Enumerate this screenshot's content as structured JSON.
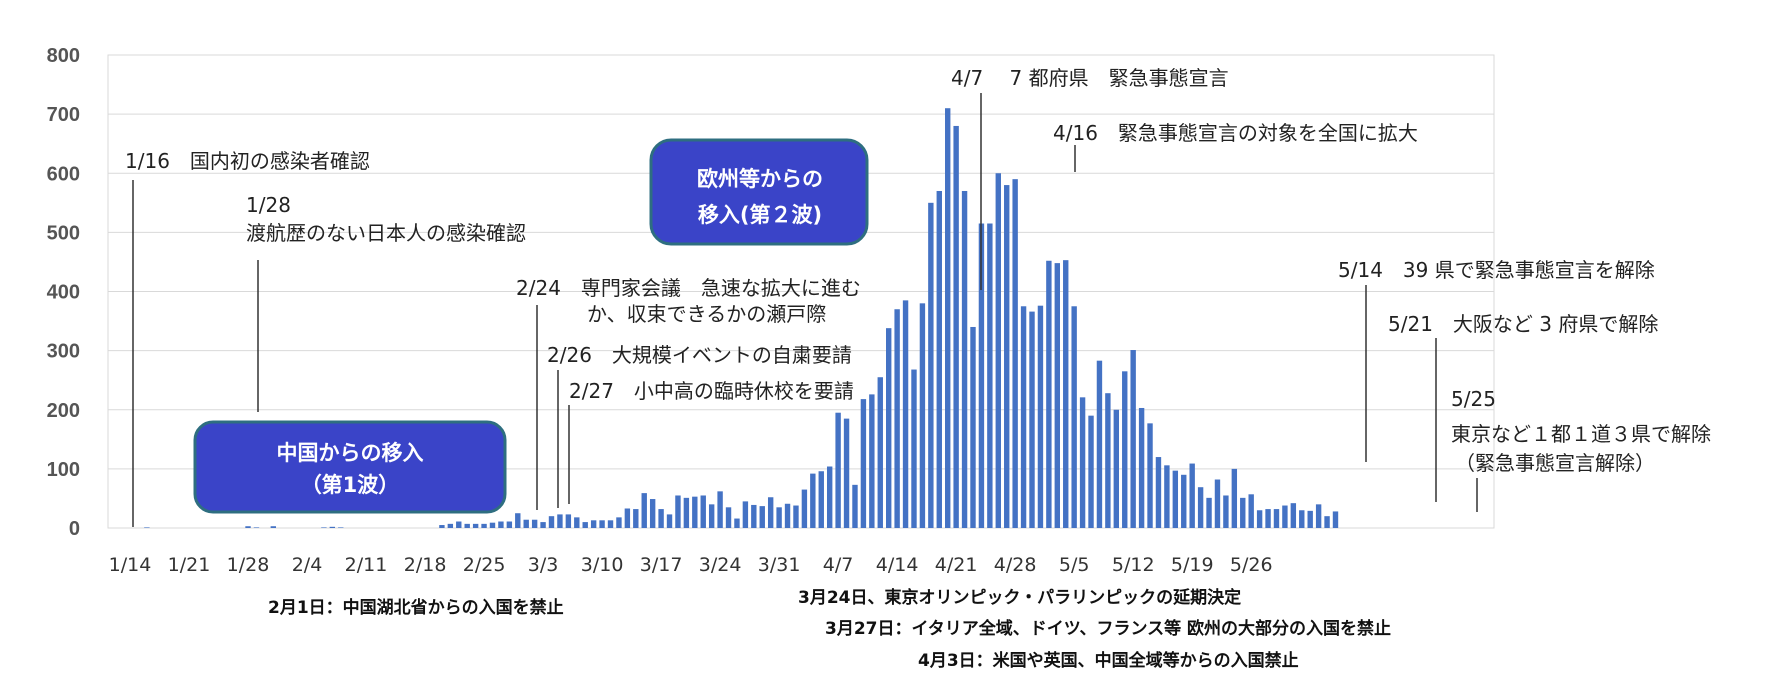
{
  "chart_data": {
    "type": "bar",
    "start_date": "1/14",
    "x_tick_labels": [
      "1/14",
      "1/21",
      "1/28",
      "2/4",
      "2/11",
      "2/18",
      "2/25",
      "3/3",
      "3/10",
      "3/17",
      "3/24",
      "3/31",
      "4/7",
      "4/14",
      "4/21",
      "4/28",
      "5/5",
      "5/12",
      "5/19",
      "5/26"
    ],
    "ylim": [
      0,
      800
    ],
    "y_ticks": [
      0,
      100,
      200,
      300,
      400,
      500,
      600,
      700,
      800
    ],
    "grid": true,
    "bar_color": "#4472C4",
    "values": [
      0,
      0,
      1,
      0,
      0,
      0,
      0,
      0,
      0,
      0,
      0,
      0,
      0,
      0,
      3,
      1,
      0,
      3,
      0,
      0,
      0,
      0,
      0,
      1,
      2,
      1,
      0,
      0,
      0,
      0,
      0,
      0,
      0,
      0,
      0,
      0,
      0,
      5,
      7,
      11,
      7,
      7,
      7,
      9,
      11,
      11,
      25,
      14,
      14,
      10,
      20,
      23,
      23,
      18,
      10,
      13,
      13,
      13,
      18,
      33,
      32,
      59,
      49,
      32,
      23,
      55,
      51,
      53,
      55,
      40,
      62,
      35,
      16,
      45,
      39,
      37,
      52,
      35,
      41,
      38,
      65,
      92,
      96,
      104,
      195,
      185,
      73,
      218,
      226,
      255,
      338,
      370,
      385,
      268,
      380,
      550,
      570,
      710,
      680,
      570,
      340,
      515,
      515,
      600,
      580,
      590,
      375,
      366,
      376,
      452,
      448,
      453,
      375,
      221,
      190,
      283,
      228,
      200,
      265,
      301,
      203,
      177,
      120,
      106,
      97,
      90,
      109,
      69,
      51,
      82,
      55,
      100,
      51,
      57,
      30,
      32,
      32,
      38,
      42,
      30,
      29,
      40,
      20,
      28
    ]
  },
  "annotations": {
    "a0116": "1/16　国内初の感染者確認",
    "a0128_date": "1/28",
    "a0128_text": "渡航歴のない日本人の感染確認",
    "a0224_a": "2/24　専門家会議　急速な拡大に進む",
    "a0224_b": "か、収束できるかの瀬戸際",
    "a0226": "2/26　大規模イベントの自粛要請",
    "a0227": "2/27　小中高の臨時休校を要請",
    "a0407": "4/7　 7 都府県　緊急事態宣言",
    "a0416": "4/16　緊急事態宣言の対象を全国に拡大",
    "a0514": "5/14　39 県で緊急事態宣言を解除",
    "a0521": "5/21　大阪など 3 府県で解除",
    "a0525_date": "5/25",
    "a0525_text": "東京など１都１道３県で解除",
    "a0525_sub": "（緊急事態宣言解除）"
  },
  "boxes": {
    "china_line1": "中国からの移入",
    "china_line2": "（第1波）",
    "europe_line1": "欧州等からの",
    "europe_line2": "移入(第２波)",
    "box_color": "#3A44C8",
    "box_border": "#2E6E80"
  },
  "notes": {
    "n1": "2月1日：中国湖北省からの入国を禁止",
    "n2": "3月24日、東京オリンピック・パラリンピックの延期決定",
    "n3": "3月27日：イタリア全域、ドイツ、フランス等 欧州の大部分の入国を禁止",
    "n4": "4月3日：米国や英国、中国全域等からの入国禁止"
  }
}
